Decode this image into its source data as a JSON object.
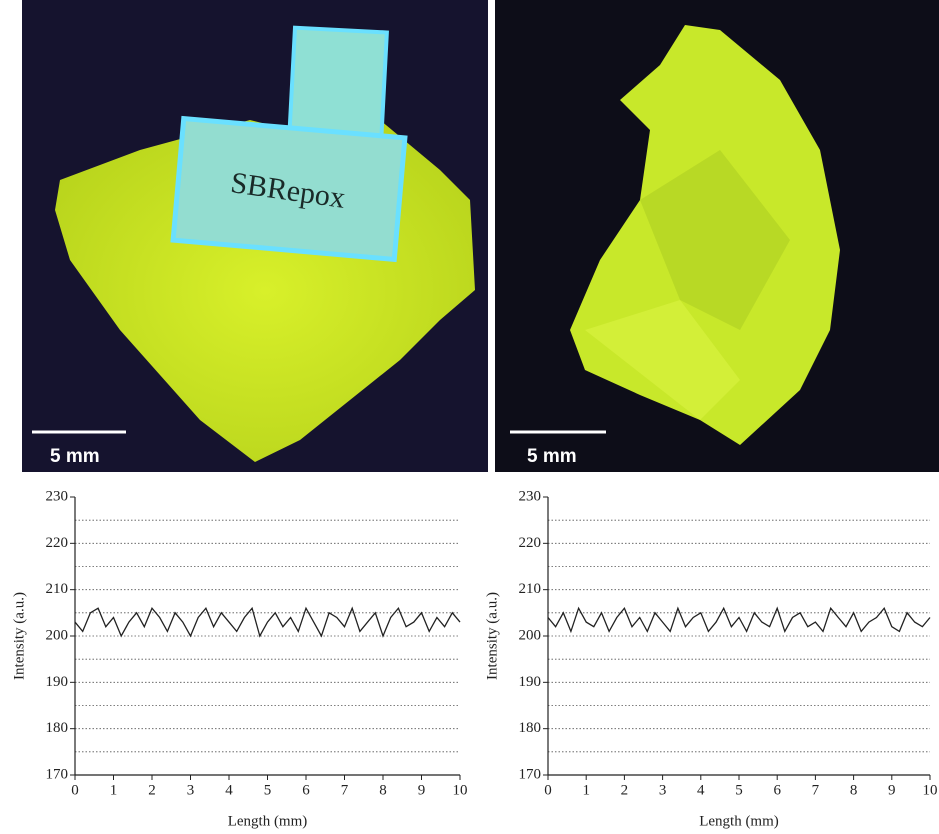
{
  "images": [
    {
      "scale_label": "5 mm",
      "sample_label": "SBRepox"
    },
    {
      "scale_label": "5 mm"
    }
  ],
  "chart_data": [
    {
      "type": "line",
      "x_label": "Length (mm)",
      "y_label": "Intensity (a.u.)",
      "color": "#222222",
      "x": [
        0,
        0.2,
        0.4,
        0.6,
        0.8,
        1,
        1.2,
        1.4,
        1.6,
        1.8,
        2,
        2.2,
        2.4,
        2.6,
        2.8,
        3,
        3.2,
        3.4,
        3.6,
        3.8,
        4,
        4.2,
        4.4,
        4.6,
        4.8,
        5,
        5.2,
        5.4,
        5.6,
        5.8,
        6,
        6.2,
        6.4,
        6.6,
        6.8,
        7,
        7.2,
        7.4,
        7.6,
        7.8,
        8,
        8.2,
        8.4,
        8.6,
        8.8,
        9,
        9.2,
        9.4,
        9.6,
        9.8,
        10
      ],
      "values": [
        203,
        201,
        205,
        206,
        202,
        204,
        200,
        203,
        205,
        202,
        206,
        204,
        201,
        205,
        203,
        200,
        204,
        206,
        202,
        205,
        203,
        201,
        204,
        206,
        200,
        203,
        205,
        202,
        204,
        201,
        206,
        203,
        200,
        205,
        204,
        202,
        206,
        201,
        203,
        205,
        200,
        204,
        206,
        202,
        203,
        205,
        201,
        204,
        202,
        205,
        203
      ],
      "xlim": [
        0,
        10
      ],
      "xticks": [
        0,
        1,
        2,
        3,
        4,
        5,
        6,
        7,
        8,
        9,
        10
      ],
      "ylim": [
        170,
        230
      ],
      "yticks": [
        170,
        180,
        190,
        200,
        210,
        220,
        230
      ],
      "grid": true,
      "grid_lines": [
        175,
        180,
        185,
        190,
        195,
        200,
        205,
        210,
        215,
        220,
        225
      ]
    },
    {
      "type": "line",
      "x_label": "Length (mm)",
      "y_label": "Intensity (a.u.)",
      "color": "#222222",
      "x": [
        0,
        0.2,
        0.4,
        0.6,
        0.8,
        1,
        1.2,
        1.4,
        1.6,
        1.8,
        2,
        2.2,
        2.4,
        2.6,
        2.8,
        3,
        3.2,
        3.4,
        3.6,
        3.8,
        4,
        4.2,
        4.4,
        4.6,
        4.8,
        5,
        5.2,
        5.4,
        5.6,
        5.8,
        6,
        6.2,
        6.4,
        6.6,
        6.8,
        7,
        7.2,
        7.4,
        7.6,
        7.8,
        8,
        8.2,
        8.4,
        8.6,
        8.8,
        9,
        9.2,
        9.4,
        9.6,
        9.8,
        10
      ],
      "values": [
        204,
        202,
        205,
        201,
        206,
        203,
        202,
        205,
        201,
        204,
        206,
        202,
        204,
        201,
        205,
        203,
        201,
        206,
        202,
        204,
        205,
        201,
        203,
        206,
        202,
        204,
        201,
        205,
        203,
        202,
        206,
        201,
        204,
        205,
        202,
        203,
        201,
        206,
        204,
        202,
        205,
        201,
        203,
        204,
        206,
        202,
        201,
        205,
        203,
        202,
        204
      ],
      "xlim": [
        0,
        10
      ],
      "xticks": [
        0,
        1,
        2,
        3,
        4,
        5,
        6,
        7,
        8,
        9,
        10
      ],
      "ylim": [
        170,
        230
      ],
      "yticks": [
        170,
        180,
        190,
        200,
        210,
        220,
        230
      ],
      "grid": true,
      "grid_lines": [
        175,
        180,
        185,
        190,
        195,
        200,
        205,
        210,
        215,
        220,
        225
      ]
    }
  ]
}
